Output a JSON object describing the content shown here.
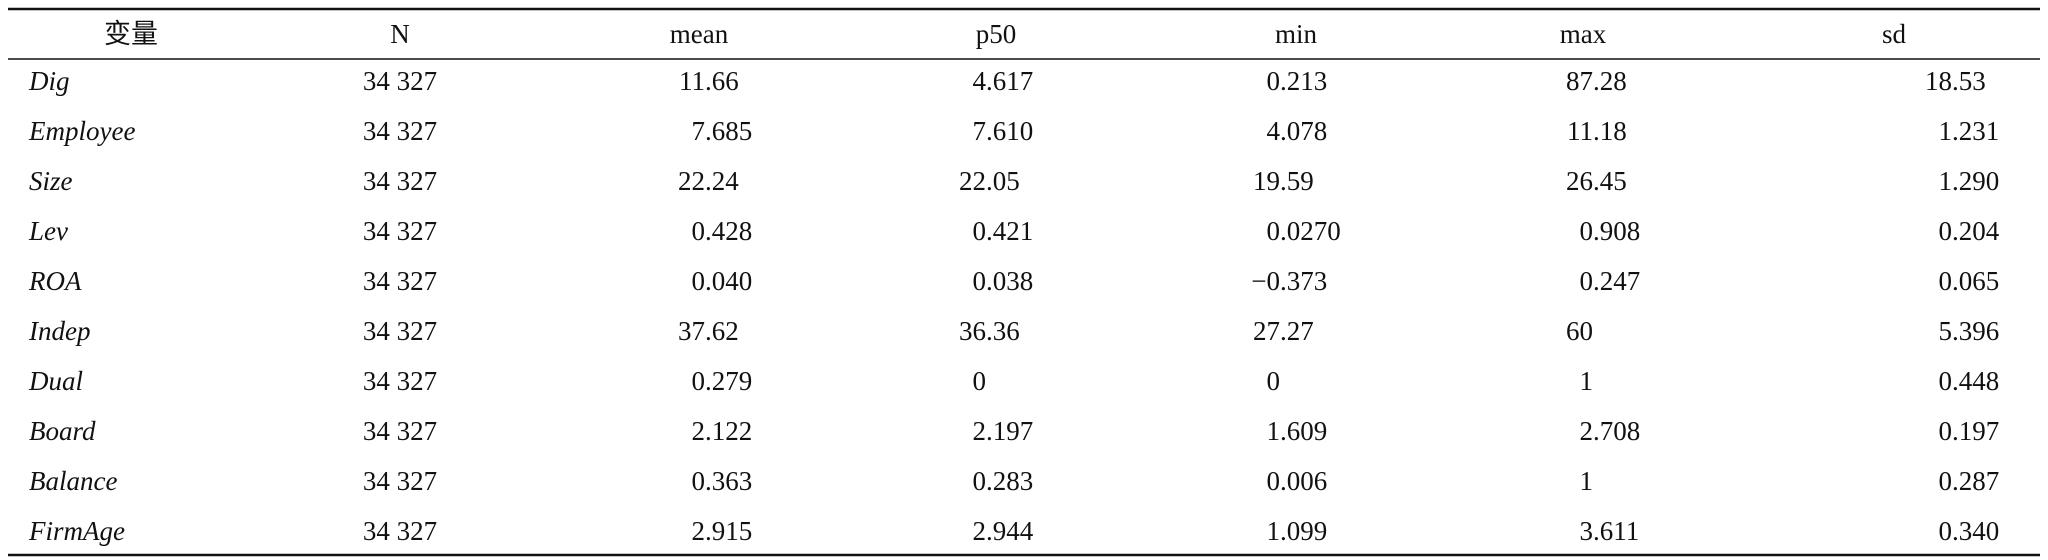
{
  "table": {
    "header": [
      "变量",
      "N",
      "mean",
      "p50",
      "min",
      "max",
      "sd"
    ],
    "rows": [
      [
        "Dig",
        "34 327",
        "11.66",
        "4.617",
        "0.213",
        "87.28",
        "18.53"
      ],
      [
        "Employee",
        "34 327",
        "7.685",
        "7.610",
        "4.078",
        "11.18",
        "1.231"
      ],
      [
        "Size",
        "34 327",
        "22.24",
        "22.05",
        "19.59",
        "26.45",
        "1.290"
      ],
      [
        "Lev",
        "34 327",
        "0.428",
        "0.421",
        "0.0270",
        "0.908",
        "0.204"
      ],
      [
        "ROA",
        "34 327",
        "0.040",
        "0.038",
        "−0.373",
        "0.247",
        "0.065"
      ],
      [
        "Indep",
        "34 327",
        "37.62",
        "36.36",
        "27.27",
        "60",
        "5.396"
      ],
      [
        "Dual",
        "34 327",
        "0.279",
        "0",
        "0",
        "1",
        "0.448"
      ],
      [
        "Board",
        "34 327",
        "2.122",
        "2.197",
        "1.609",
        "2.708",
        "0.197"
      ],
      [
        "Balance",
        "34 327",
        "0.363",
        "0.283",
        "0.006",
        "1",
        "0.287"
      ],
      [
        "FirmAge",
        "34 327",
        "2.915",
        "2.944",
        "1.099",
        "3.611",
        "0.340"
      ]
    ]
  }
}
